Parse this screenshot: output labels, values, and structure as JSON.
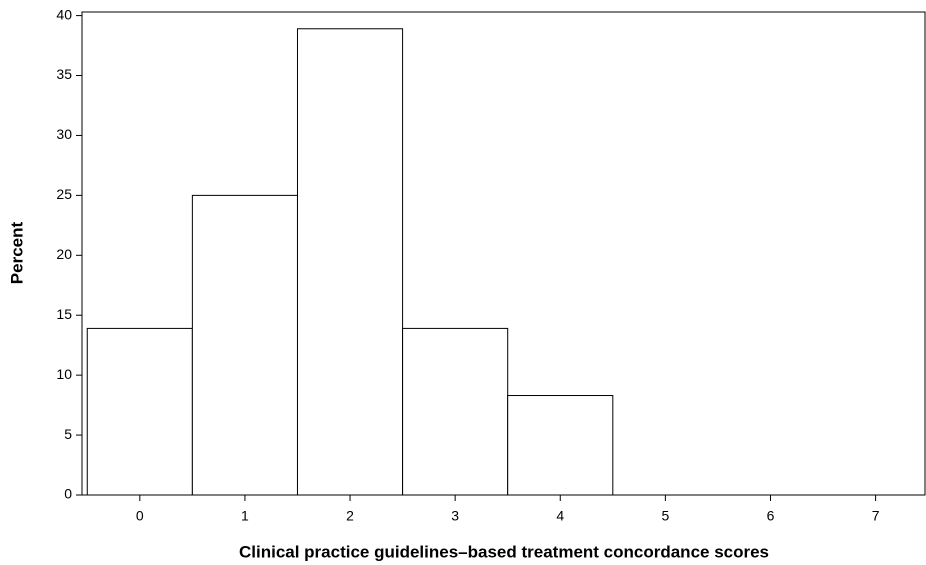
{
  "chart_data": {
    "type": "histogram",
    "x_label": "Clinical practice guidelines–based treatment concordance scores",
    "y_label": "Percent",
    "bins": [
      -0.5,
      0.5,
      1.5,
      2.5,
      3.5,
      4.5
    ],
    "counts": [
      13.9,
      25,
      38.9,
      13.9,
      8.3
    ],
    "color": "#ffffff",
    "xlim": [
      -0.55,
      7.47
    ],
    "xticks": [
      0,
      1,
      2,
      3,
      4,
      5,
      6,
      7
    ],
    "ylim": [
      0,
      40.3
    ],
    "yticks": [
      0,
      5,
      10,
      15,
      20,
      25,
      30,
      35,
      40
    ],
    "grid": false
  }
}
